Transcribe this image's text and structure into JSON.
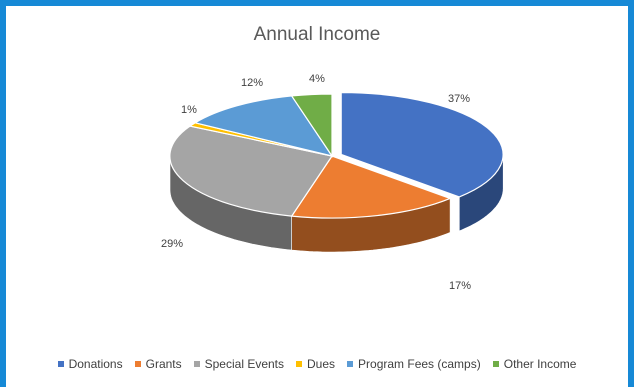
{
  "chart_data": {
    "type": "pie",
    "title": "Annual Income",
    "categories": [
      "Donations",
      "Grants",
      "Special Events",
      "Dues",
      "Program Fees (camps)",
      "Other Income"
    ],
    "values": [
      37,
      17,
      29,
      1,
      12,
      4
    ],
    "data_labels": [
      "37%",
      "17%",
      "29%",
      "1%",
      "12%",
      "4%"
    ],
    "colors": [
      "#4472c4",
      "#ed7d31",
      "#a5a5a5",
      "#ffc000",
      "#5b9bd5",
      "#70ad47"
    ],
    "legend_position": "bottom",
    "style": "3d",
    "exploded_slice": "Donations"
  }
}
